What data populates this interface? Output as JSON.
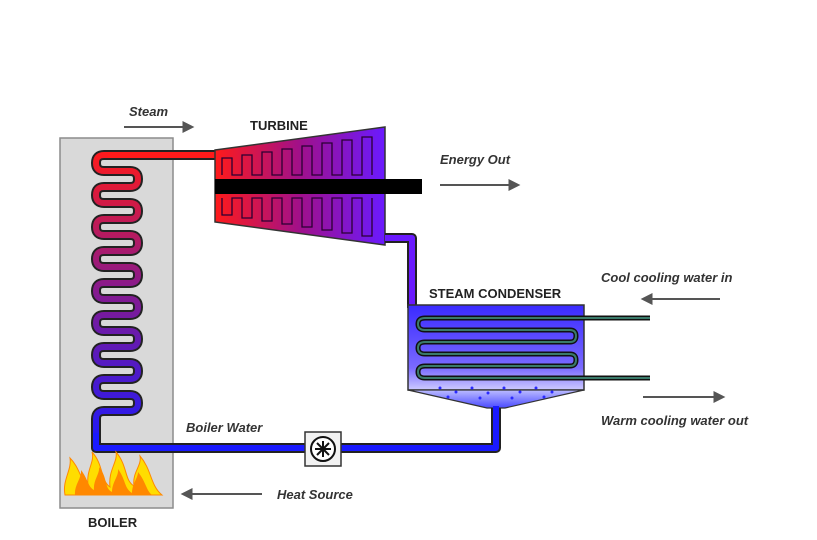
{
  "labels": {
    "steam": "Steam",
    "turbine": "TURBINE",
    "energy_out": "Energy Out",
    "steam_condenser": "STEAM CONDENSER",
    "cool_water_in": "Cool cooling water in",
    "warm_water_out": "Warm cooling water out",
    "boiler_water": "Boiler Water",
    "heat_source": "Heat Source",
    "boiler": "BOILER"
  },
  "colors": {
    "hot_steam": "#ff1a1a",
    "cold_water": "#1a1aff",
    "boiler_box": "#d9d9d9",
    "shaft": "#000000",
    "cooling_pipe": "#2e5f4a",
    "flame_outer": "#ffdd00",
    "flame_inner": "#ff8800",
    "arrow": "#555555"
  }
}
